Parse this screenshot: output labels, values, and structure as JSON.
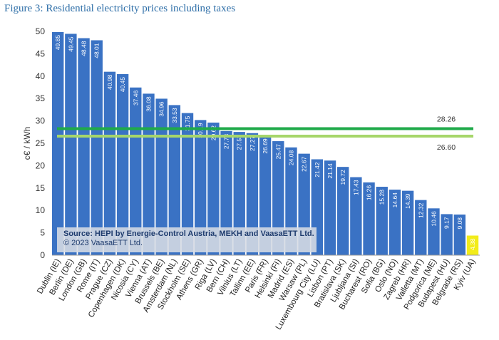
{
  "figure_title": "Figure 3: Residential electricity prices including taxes",
  "source": {
    "text": "Source: HEPI by Energie-Control Austria, MEKH and VaasaETT Ltd.",
    "copyright": "© 2023 VaasaETT Ltd."
  },
  "chart_data": {
    "type": "bar",
    "title": "Figure 3: Residential electricity prices including taxes",
    "xlabel": "",
    "ylabel": "c€ / kWh",
    "ylim": [
      0,
      50
    ],
    "yticks": [
      0,
      5,
      10,
      15,
      20,
      25,
      30,
      35,
      40,
      45,
      50
    ],
    "grid": false,
    "categories": [
      "Dublin (IE)",
      "Berlin (DE)",
      "London (GB)",
      "Rome (IT)",
      "Prague (CZ)",
      "Copenhagen (DK)",
      "Nicosia (CY)",
      "Vienna (AT)",
      "Brussels (BE)",
      "Amsterdam (NL)",
      "Stockholm (SE)",
      "Athens (GR)",
      "Riga (LV)",
      "Bern (CH)",
      "Vilnius (LT)",
      "Tallinn (EE)",
      "Paris (FR)",
      "Helsinki (FI)",
      "Madrid (ES)",
      "Warsaw (PL)",
      "Luxembourg City (LU)",
      "Lisbon (PT)",
      "Bratislava (SK)",
      "Ljubljana (SI)",
      "Bucharest (RO)",
      "Sofia (BG)",
      "Oslo (NO)",
      "Zagreb (HR)",
      "Valletta (MT)",
      "Podgorica (ME)",
      "Budapest (HU)",
      "Belgrade (RS)",
      "Kyiv (UA)"
    ],
    "values": [
      49.85,
      49.45,
      48.48,
      48.01,
      40.98,
      40.45,
      37.46,
      36.08,
      34.96,
      33.53,
      31.75,
      30.19,
      29.62,
      27.73,
      27.53,
      27.27,
      26.69,
      25.47,
      24.08,
      22.67,
      21.42,
      21.14,
      19.72,
      17.43,
      16.26,
      15.28,
      14.64,
      14.39,
      12.32,
      10.46,
      9.17,
      9.08,
      4.38
    ],
    "value_labels": [
      "49.85",
      "49.45",
      "48.48",
      "48.01",
      "40.98",
      "40.45",
      "37.46",
      "36.08",
      "34.96",
      "33.53",
      "31.75",
      "30.19",
      "29.62",
      "27.73",
      "27.53",
      "27.27",
      "26.69",
      "25.47",
      "24.08",
      "22.67",
      "21.42",
      "21.14",
      "19.72",
      "17.43",
      "16.26",
      "15.28",
      "14.64",
      "14.39",
      "12.32",
      "10.46",
      "9.17",
      "9.08",
      "4.38"
    ],
    "bar_color": "#3a72c4",
    "highlight": {
      "category": "Kyiv (UA)",
      "color": "#f2ec1a"
    },
    "reference_lines": [
      {
        "value": 28.26,
        "label": "28.26",
        "color": "#1faa4a"
      },
      {
        "value": 26.6,
        "label": "26.60",
        "color": "#a6d66a"
      }
    ]
  }
}
